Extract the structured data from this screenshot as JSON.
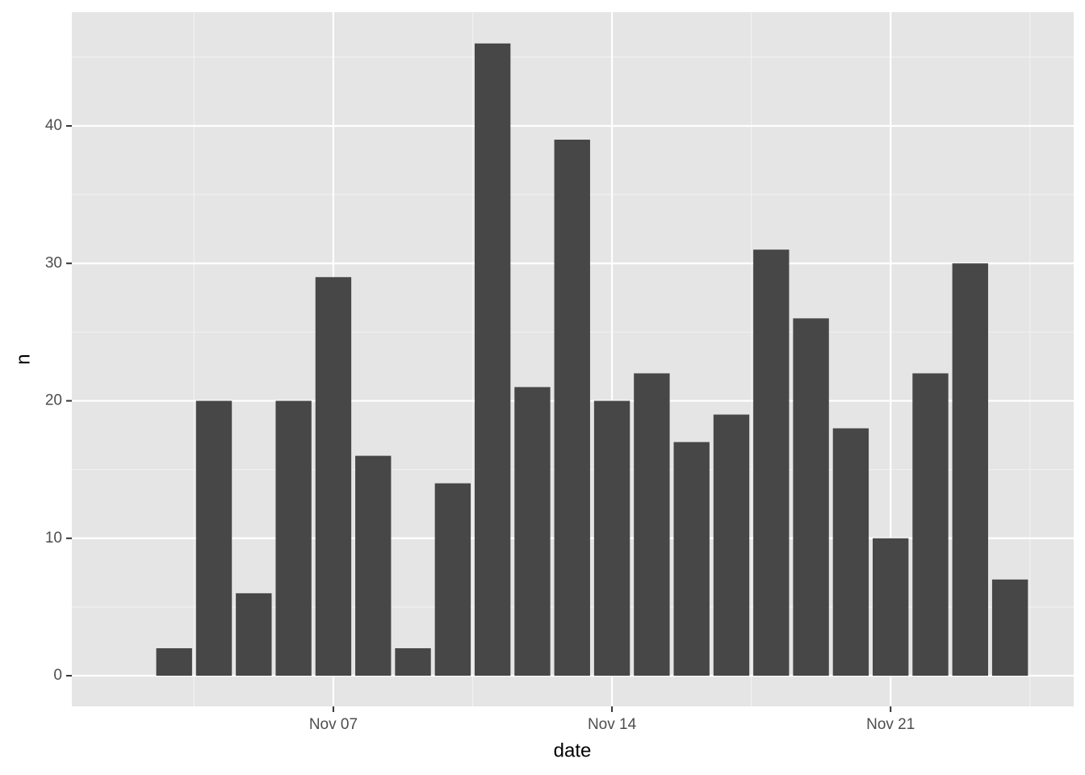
{
  "chart_data": {
    "type": "bar",
    "x_label": "date",
    "y_label": "n",
    "x": [
      3,
      4,
      5,
      6,
      7,
      8,
      9,
      10,
      11,
      12,
      13,
      14,
      15,
      16,
      17,
      18,
      19,
      20,
      21,
      22,
      23,
      24
    ],
    "values": [
      2,
      20,
      6,
      20,
      29,
      16,
      2,
      14,
      46,
      21,
      39,
      20,
      22,
      17,
      19,
      31,
      26,
      18,
      10,
      22,
      30,
      7
    ],
    "color": "#474747",
    "xlim": [
      0.43,
      25.6
    ],
    "xticks": [
      {
        "value": 7,
        "label": "Nov 07"
      },
      {
        "value": 14,
        "label": "Nov 14"
      },
      {
        "value": 21,
        "label": "Nov 21"
      }
    ],
    "ylim": [
      -2.23,
      48.28
    ],
    "yticks": [
      0,
      10,
      20,
      30,
      40
    ],
    "grid": true
  }
}
